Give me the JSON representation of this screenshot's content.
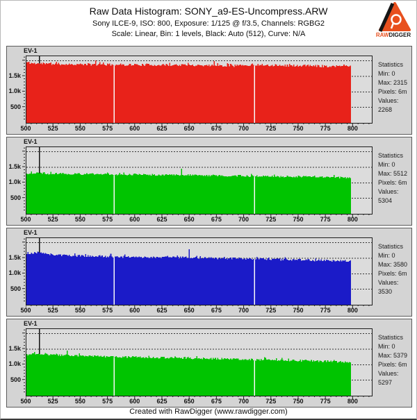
{
  "header": {
    "title": "Raw Data Histogram: SONY_a9-ES-Uncompress.ARW",
    "subtitle1": "Sony ILCE-9, ISO: 800, Exposure: 1/125 @ f/3.5, Channels: RGBG2",
    "subtitle2": "Scale: Linear, Bin: 1 levels, Black: Auto (512), Curve: N/A",
    "logo": {
      "raw": "RAW",
      "digger": "DIGGER"
    }
  },
  "footer": {
    "credit": "Created with RawDigger (www.rawdigger.com)"
  },
  "colors": {
    "red": "#e8221a",
    "green": "#00c400",
    "blue": "#1b1bc8",
    "panel_bg": "#d4d4d4",
    "plot_bg": "#dcdcdc",
    "grid": "#333333",
    "gap": "#f8f8f8",
    "logo_orange": "#e8501e"
  },
  "chart_data": [
    {
      "type": "histogram",
      "channel": "R",
      "color_key": "red",
      "ev_label": "EV-1",
      "ev_line_x": 512,
      "x_min": 500,
      "x_data_end": 798,
      "x_axis_max": 817,
      "x_ticks": [
        500,
        525,
        550,
        575,
        600,
        625,
        650,
        675,
        700,
        725,
        750,
        775,
        800
      ],
      "y_max": 2150,
      "y_ticks": [
        {
          "value": 500,
          "label": "500"
        },
        {
          "value": 1000,
          "label": "1.0k"
        },
        {
          "value": 1500,
          "label": "1.5k"
        }
      ],
      "y_gridlines": [
        500,
        1000,
        1500,
        2000
      ],
      "gaps": [
        580,
        709
      ],
      "envelope": [
        [
          500,
          1960
        ],
        [
          506,
          1920
        ],
        [
          520,
          1900
        ],
        [
          560,
          1885
        ],
        [
          600,
          1875
        ],
        [
          650,
          1865
        ],
        [
          690,
          1845
        ],
        [
          710,
          1880
        ],
        [
          725,
          1855
        ],
        [
          750,
          1845
        ],
        [
          775,
          1830
        ],
        [
          798,
          1855
        ]
      ],
      "noise": 38,
      "spikes": [
        [
          563,
          2015
        ],
        [
          672,
          1995
        ]
      ],
      "seed": 11,
      "stats": {
        "title": "Statistics",
        "rows": [
          {
            "label": "Min",
            "value": "0"
          },
          {
            "label": "Max",
            "value": "2315"
          },
          {
            "label": "Pixels",
            "value": "6m"
          },
          {
            "label": "Values",
            "value": "2268"
          }
        ]
      }
    },
    {
      "type": "histogram",
      "channel": "G",
      "color_key": "green",
      "ev_label": "EV-1",
      "ev_line_x": 512,
      "x_min": 500,
      "x_data_end": 798,
      "x_axis_max": 817,
      "x_ticks": [
        500,
        525,
        550,
        575,
        600,
        625,
        650,
        675,
        700,
        725,
        750,
        775,
        800
      ],
      "y_max": 2150,
      "y_ticks": [
        {
          "value": 500,
          "label": "500"
        },
        {
          "value": 1000,
          "label": "1.0k"
        },
        {
          "value": 1500,
          "label": "1.5k"
        }
      ],
      "y_gridlines": [
        500,
        1000,
        1500,
        2000
      ],
      "gaps": [
        580,
        709
      ],
      "envelope": [
        [
          500,
          1290
        ],
        [
          508,
          1320
        ],
        [
          520,
          1300
        ],
        [
          545,
          1285
        ],
        [
          575,
          1275
        ],
        [
          605,
          1265
        ],
        [
          635,
          1255
        ],
        [
          665,
          1235
        ],
        [
          695,
          1225
        ],
        [
          720,
          1215
        ],
        [
          745,
          1200
        ],
        [
          770,
          1185
        ],
        [
          798,
          1165
        ]
      ],
      "noise": 30,
      "spikes": [
        [
          642,
          1460
        ]
      ],
      "seed": 22,
      "stats": {
        "title": "Statistics",
        "rows": [
          {
            "label": "Min",
            "value": "0"
          },
          {
            "label": "Max",
            "value": "5512"
          },
          {
            "label": "Pixels",
            "value": "6m"
          },
          {
            "label": "Values",
            "value": "5304"
          }
        ]
      }
    },
    {
      "type": "histogram",
      "channel": "B",
      "color_key": "blue",
      "ev_label": "EV-1",
      "ev_line_x": 512,
      "x_min": 500,
      "x_data_end": 798,
      "x_axis_max": 817,
      "x_ticks": [
        500,
        525,
        550,
        575,
        600,
        625,
        650,
        675,
        700,
        725,
        750,
        775,
        800
      ],
      "y_max": 2150,
      "y_ticks": [
        {
          "value": 500,
          "label": "500"
        },
        {
          "value": 1000,
          "label": "1.0k"
        },
        {
          "value": 1500,
          "label": "1.5k"
        }
      ],
      "y_gridlines": [
        500,
        1000,
        1500,
        2000
      ],
      "gaps": [
        580,
        709
      ],
      "envelope": [
        [
          500,
          1630
        ],
        [
          505,
          1660
        ],
        [
          510,
          1690
        ],
        [
          518,
          1640
        ],
        [
          535,
          1590
        ],
        [
          560,
          1565
        ],
        [
          590,
          1545
        ],
        [
          620,
          1530
        ],
        [
          650,
          1520
        ],
        [
          680,
          1500
        ],
        [
          705,
          1475
        ],
        [
          725,
          1465
        ],
        [
          750,
          1450
        ],
        [
          775,
          1430
        ],
        [
          798,
          1410
        ]
      ],
      "noise": 35,
      "spikes": [
        [
          649,
          1790
        ]
      ],
      "seed": 33,
      "stats": {
        "title": "Statistics",
        "rows": [
          {
            "label": "Min",
            "value": "0"
          },
          {
            "label": "Max",
            "value": "3580"
          },
          {
            "label": "Pixels",
            "value": "6m"
          },
          {
            "label": "Values",
            "value": "3530"
          }
        ]
      }
    },
    {
      "type": "histogram",
      "channel": "G2",
      "color_key": "green",
      "ev_label": "EV-1",
      "ev_line_x": 512,
      "x_min": 500,
      "x_data_end": 798,
      "x_axis_max": 817,
      "x_ticks": [
        500,
        525,
        550,
        575,
        600,
        625,
        650,
        675,
        700,
        725,
        750,
        775,
        800
      ],
      "y_max": 2150,
      "y_ticks": [
        {
          "value": 500,
          "label": "500"
        },
        {
          "value": 1000,
          "label": "1.0k"
        },
        {
          "value": 1500,
          "label": "1.5k"
        }
      ],
      "y_gridlines": [
        500,
        1000,
        1500,
        2000
      ],
      "gaps": [
        580,
        709
      ],
      "envelope": [
        [
          500,
          1320
        ],
        [
          510,
          1345
        ],
        [
          525,
          1315
        ],
        [
          550,
          1290
        ],
        [
          575,
          1260
        ],
        [
          600,
          1245
        ],
        [
          630,
          1220
        ],
        [
          660,
          1200
        ],
        [
          690,
          1185
        ],
        [
          715,
          1160
        ],
        [
          740,
          1140
        ],
        [
          765,
          1120
        ],
        [
          798,
          1085
        ]
      ],
      "noise": 32,
      "spikes": [
        [
          537,
          1460
        ]
      ],
      "seed": 44,
      "stats": {
        "title": "Statistics",
        "rows": [
          {
            "label": "Min",
            "value": "0"
          },
          {
            "label": "Max",
            "value": "5379"
          },
          {
            "label": "Pixels",
            "value": "6m"
          },
          {
            "label": "Values",
            "value": "5297"
          }
        ]
      }
    }
  ]
}
